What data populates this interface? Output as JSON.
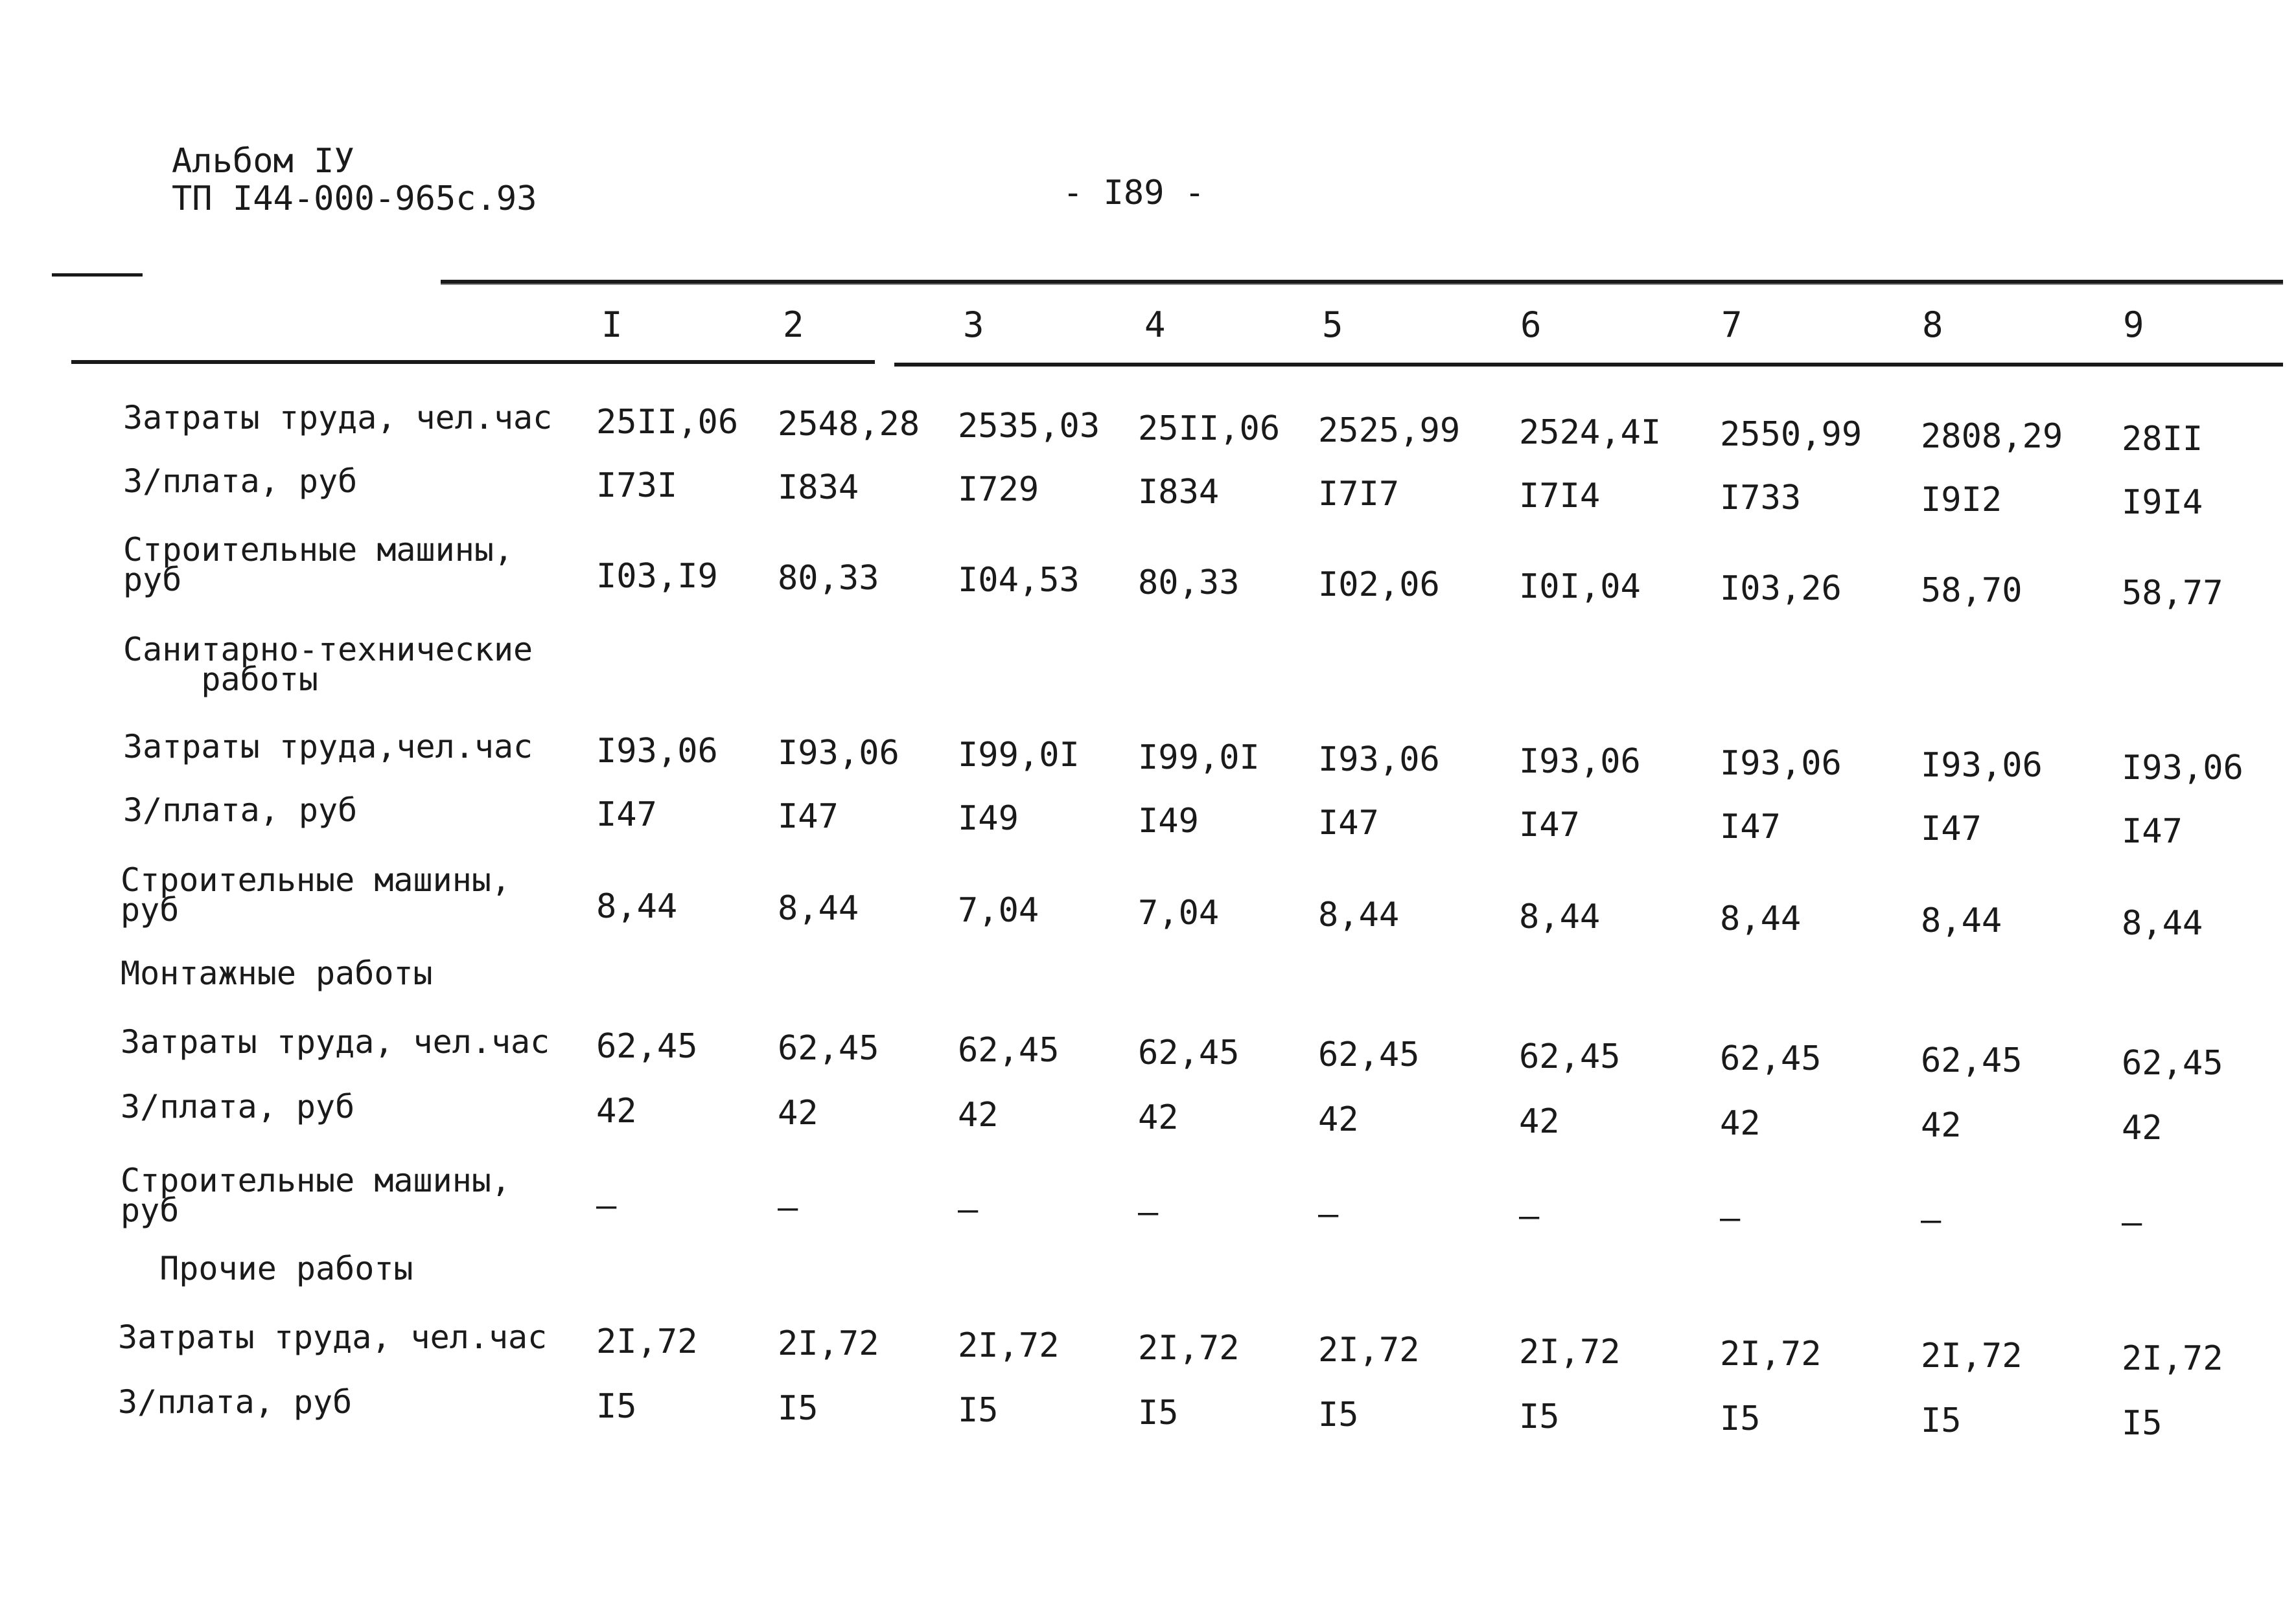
{
  "header": {
    "album": "Альбом IУ",
    "project": "ТП I44-000-965с.93",
    "page_number": "- I89 -"
  },
  "table": {
    "columns": [
      "I",
      "2",
      "3",
      "4",
      "5",
      "6",
      "7",
      "8",
      "9"
    ],
    "rows": [
      {
        "label": "Затраты труда, чел.час",
        "values": [
          "25II,06",
          "2548,28",
          "2535,03",
          "25II,06",
          "2525,99",
          "2524,4I",
          "2550,99",
          "2808,29",
          "28II"
        ]
      },
      {
        "label": "З/плата, руб",
        "values": [
          "I73I",
          "I834",
          "I729",
          "I834",
          "I7I7",
          "I7I4",
          "I733",
          "I9I2",
          "I9I4"
        ]
      },
      {
        "label": "Строительные машины,\nруб",
        "values": [
          "I03,I9",
          "80,33",
          "I04,53",
          "80,33",
          "I02,06",
          "I0I,04",
          "I03,26",
          "58,70",
          "58,77"
        ]
      },
      {
        "label": "Санитарно-технические\n    работы",
        "values": []
      },
      {
        "label": "Затраты труда,чел.час",
        "values": [
          "I93,06",
          "I93,06",
          "I99,0I",
          "I99,0I",
          "I93,06",
          "I93,06",
          "I93,06",
          "I93,06",
          "I93,06"
        ]
      },
      {
        "label": "З/плата, руб",
        "values": [
          "I47",
          "I47",
          "I49",
          "I49",
          "I47",
          "I47",
          "I47",
          "I47",
          "I47"
        ]
      },
      {
        "label": "Строительные машины,\nруб",
        "values": [
          "8,44",
          "8,44",
          "7,04",
          "7,04",
          "8,44",
          "8,44",
          "8,44",
          "8,44",
          "8,44"
        ]
      },
      {
        "label": "Монтажные работы",
        "values": []
      },
      {
        "label": "Затраты труда, чел.час",
        "values": [
          "62,45",
          "62,45",
          "62,45",
          "62,45",
          "62,45",
          "62,45",
          "62,45",
          "62,45",
          "62,45"
        ]
      },
      {
        "label": "З/плата, руб",
        "values": [
          "42",
          "42",
          "42",
          "42",
          "42",
          "42",
          "42",
          "42",
          "42"
        ]
      },
      {
        "label": "Строительные машины,\nруб",
        "values": [
          "–",
          "–",
          "–",
          "–",
          "–",
          "–",
          "–",
          "–",
          "–"
        ]
      },
      {
        "label": "  Прочие работы",
        "values": []
      },
      {
        "label": "Затраты труда, чел.час",
        "values": [
          "2I,72",
          "2I,72",
          "2I,72",
          "2I,72",
          "2I,72",
          "2I,72",
          "2I,72",
          "2I,72",
          "2I,72"
        ]
      },
      {
        "label": "З/плата, руб",
        "values": [
          "I5",
          "I5",
          "I5",
          "I5",
          "I5",
          "I5",
          "I5",
          "I5",
          "I5"
        ]
      }
    ]
  }
}
